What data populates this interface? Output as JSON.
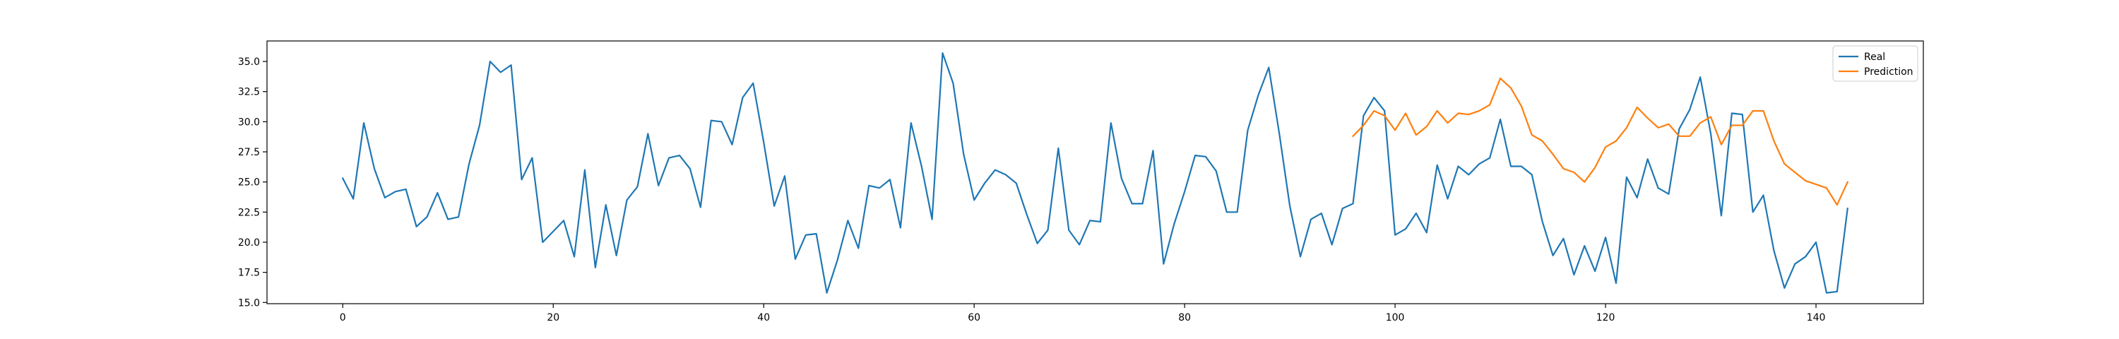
{
  "chart_data": {
    "type": "line",
    "title": "",
    "xlabel": "",
    "ylabel": "",
    "xlim": [
      -7.2,
      150.2
    ],
    "ylim": [
      14.9,
      36.7
    ],
    "xticks": [
      0,
      20,
      40,
      60,
      80,
      100,
      120,
      140
    ],
    "yticks": [
      15.0,
      17.5,
      20.0,
      22.5,
      25.0,
      27.5,
      30.0,
      32.5,
      35.0
    ],
    "grid": false,
    "legend_position": "top-right",
    "series": [
      {
        "name": "Real",
        "color": "#1f77b4",
        "x_start": 0,
        "values": [
          25.3,
          23.6,
          29.9,
          26.1,
          23.7,
          24.2,
          24.4,
          21.3,
          22.1,
          24.1,
          21.9,
          22.1,
          26.5,
          29.7,
          35.0,
          34.1,
          34.7,
          25.2,
          27.0,
          20.0,
          20.9,
          21.8,
          18.8,
          26.0,
          17.9,
          23.1,
          18.9,
          23.5,
          24.6,
          29.0,
          24.7,
          27.0,
          27.2,
          26.1,
          22.9,
          30.1,
          30.0,
          28.1,
          32.0,
          33.2,
          28.3,
          23.0,
          25.5,
          18.6,
          20.6,
          20.7,
          15.8,
          18.5,
          21.8,
          19.5,
          24.7,
          24.5,
          25.2,
          21.2,
          29.9,
          26.3,
          21.9,
          35.7,
          33.2,
          27.3,
          23.5,
          24.9,
          26.0,
          25.6,
          24.9,
          22.3,
          19.9,
          21.0,
          27.8,
          21.0,
          19.8,
          21.8,
          21.7,
          29.9,
          25.3,
          23.2,
          23.2,
          27.6,
          18.2,
          21.5,
          24.2,
          27.2,
          27.1,
          25.9,
          22.5,
          22.5,
          29.3,
          32.2,
          34.5,
          29.0,
          23.0,
          18.8,
          21.9,
          22.4,
          19.8,
          22.8,
          23.2,
          30.5,
          32.0,
          30.9,
          20.6,
          21.1,
          22.4,
          20.8,
          26.4,
          23.6,
          26.3,
          25.6,
          26.5,
          27.0,
          30.2,
          26.3,
          26.3,
          25.6,
          21.7,
          18.9,
          20.3,
          17.3,
          19.7,
          17.6,
          20.4,
          16.6,
          25.4,
          23.7,
          26.9,
          24.5,
          24.0,
          29.4,
          31.0,
          33.7,
          29.0,
          22.2,
          30.7,
          30.6,
          22.5,
          23.9,
          19.3,
          16.2,
          18.2,
          18.8,
          20.0,
          15.8,
          15.9,
          22.8
        ]
      },
      {
        "name": "Prediction",
        "color": "#ff7f0e",
        "x_start": 96,
        "values": [
          28.8,
          29.7,
          30.9,
          30.5,
          29.3,
          30.7,
          28.9,
          29.6,
          30.9,
          29.9,
          30.7,
          30.6,
          30.9,
          31.4,
          33.6,
          32.8,
          31.3,
          28.9,
          28.4,
          27.3,
          26.1,
          25.8,
          25.0,
          26.2,
          27.9,
          28.4,
          29.5,
          31.2,
          30.3,
          29.5,
          29.8,
          28.8,
          28.8,
          29.9,
          30.4,
          28.1,
          29.7,
          29.7,
          30.9,
          30.9,
          28.4,
          26.5,
          25.8,
          25.1,
          24.8,
          24.5,
          23.1,
          25.0
        ]
      }
    ]
  }
}
